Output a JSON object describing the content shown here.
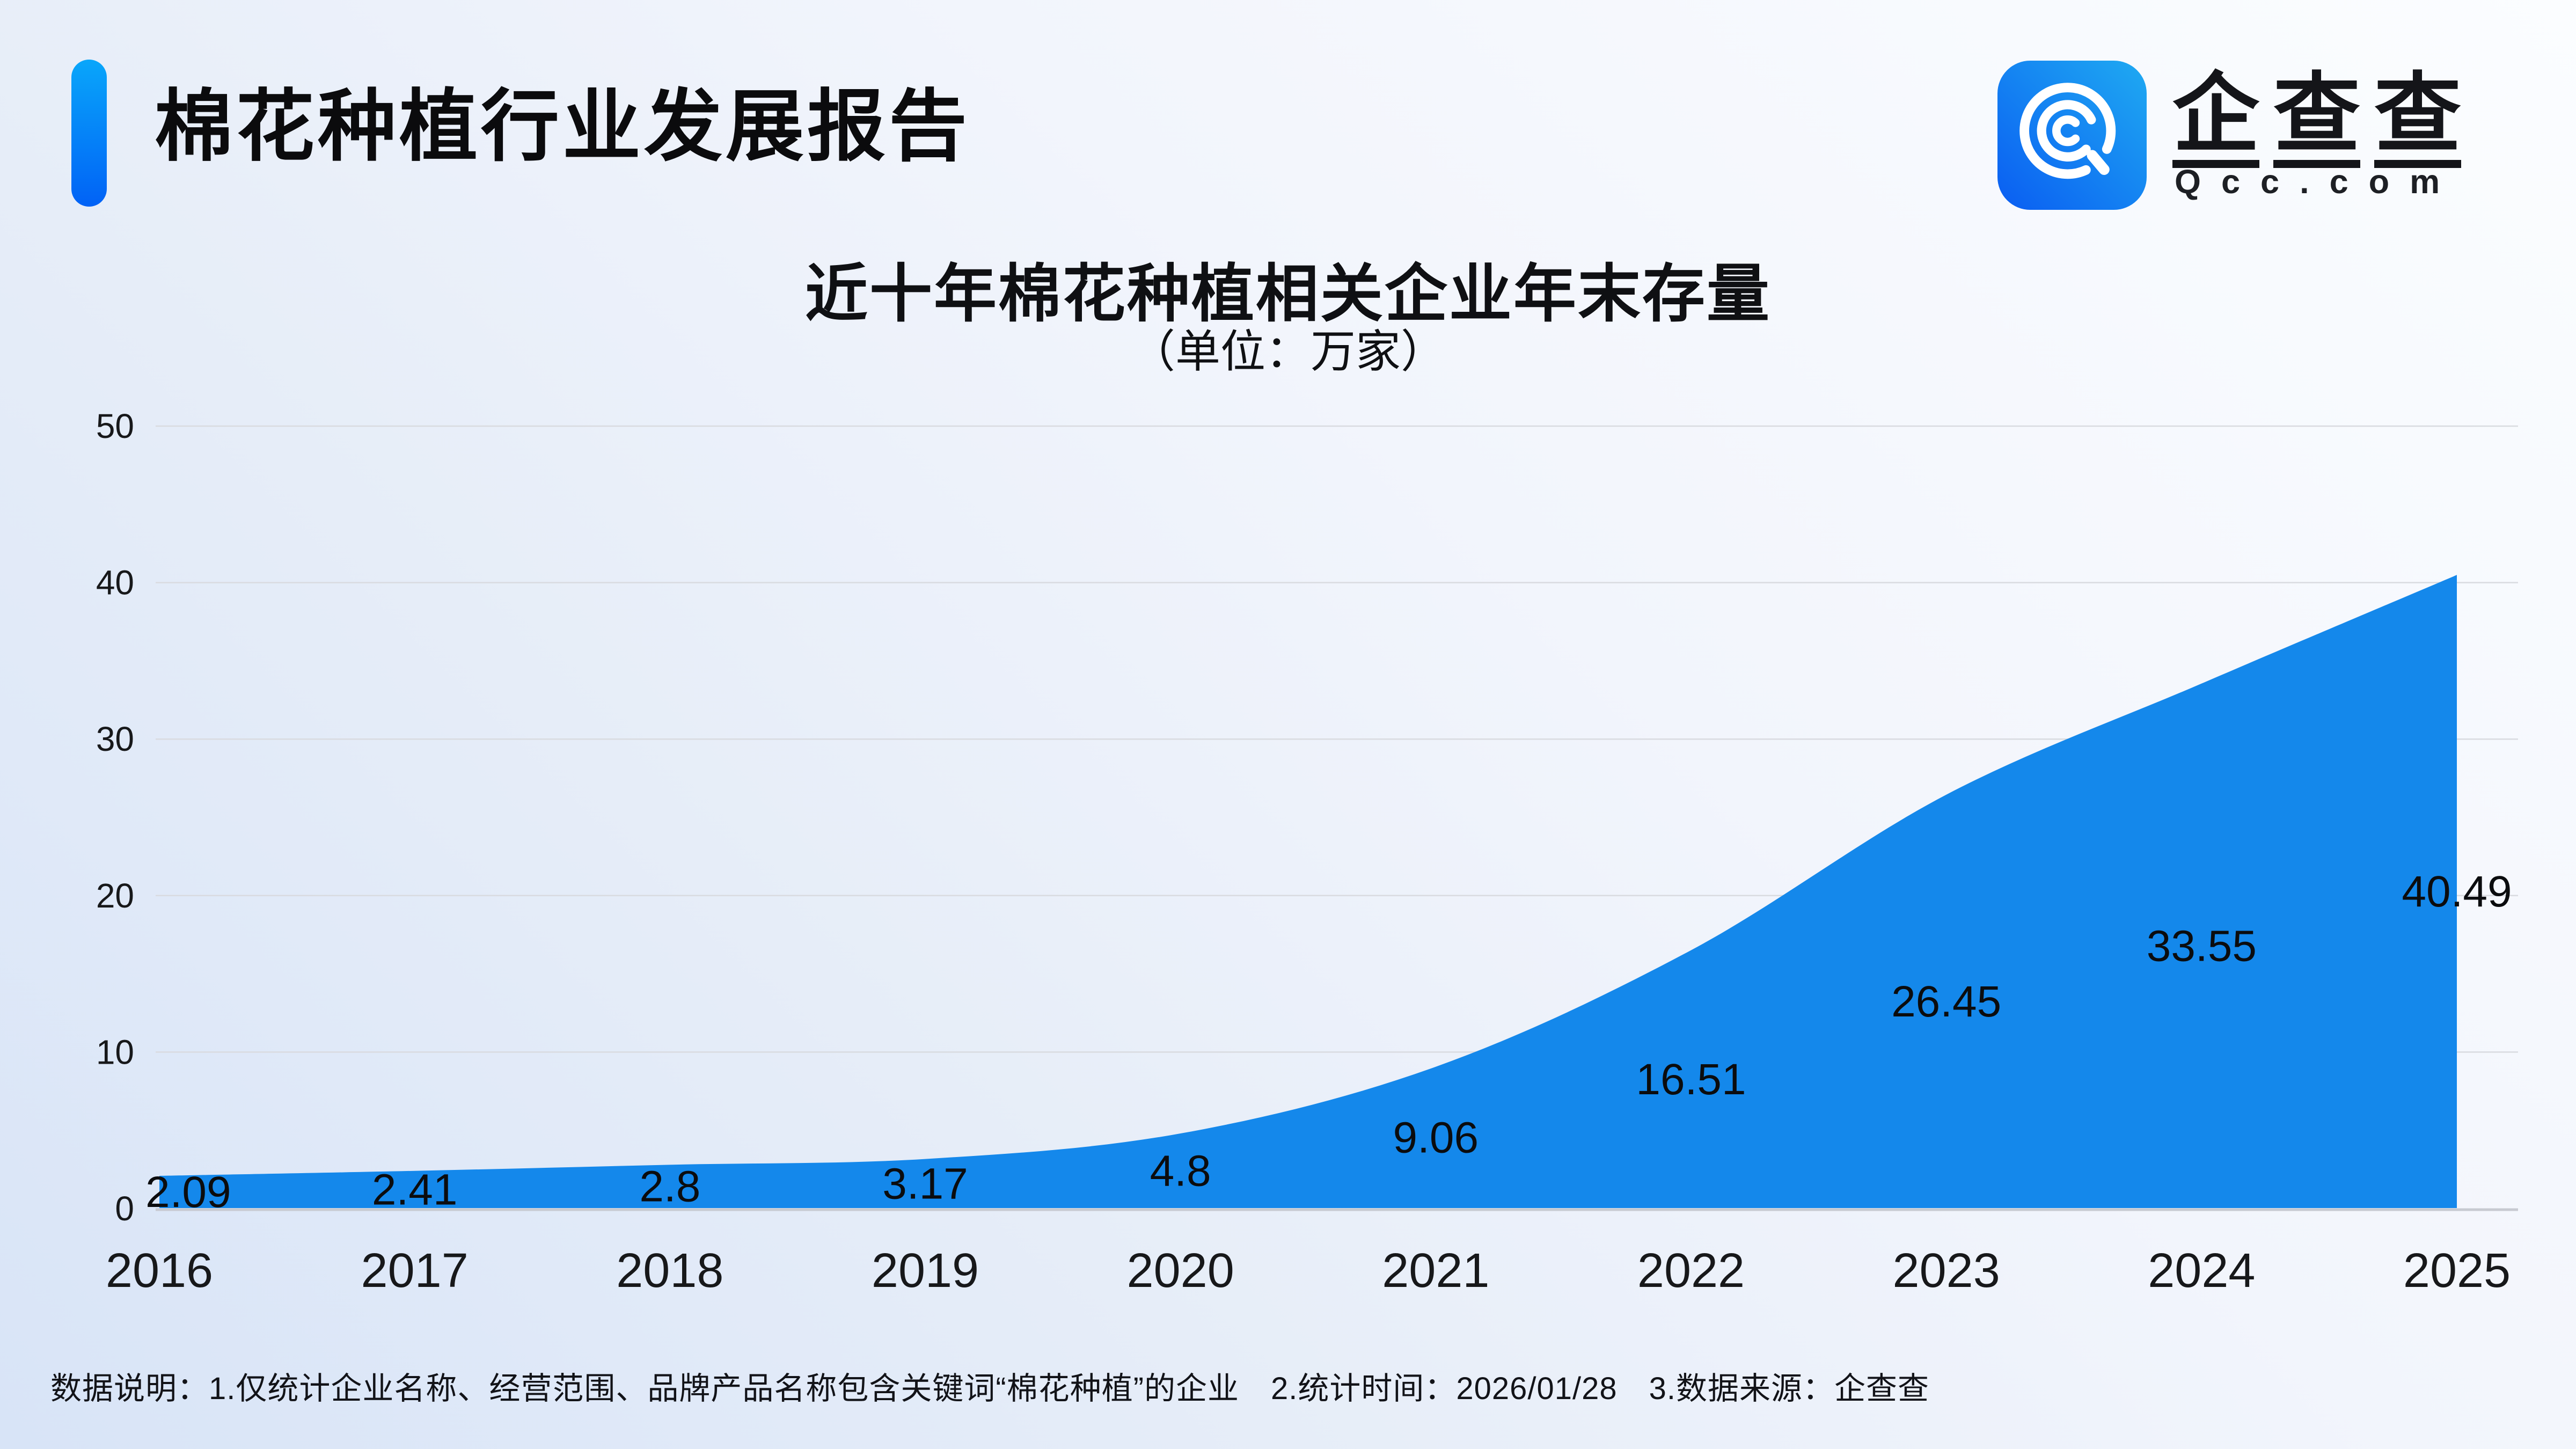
{
  "header": {
    "title": "棉花种植行业发展报告"
  },
  "logo": {
    "icon": "qcc-spiral-q-icon",
    "brand_chars": [
      "企",
      "查",
      "查"
    ],
    "domain": "Qcc.com",
    "icon_gradient_start": "#0A5DF2",
    "icon_gradient_end": "#1FAAF2"
  },
  "chart_data": {
    "type": "area",
    "title": "近十年棉花种植相关企业年末存量",
    "subtitle": "（单位：万家）",
    "unit": "万家",
    "categories": [
      "2016",
      "2017",
      "2018",
      "2019",
      "2020",
      "2021",
      "2022",
      "2023",
      "2024",
      "2025"
    ],
    "values": [
      2.09,
      2.41,
      2.8,
      3.17,
      4.8,
      9.06,
      16.51,
      26.45,
      33.55,
      40.49
    ],
    "ylim": [
      0,
      50
    ],
    "yticks": [
      0,
      10,
      20,
      30,
      40,
      50
    ],
    "grid": true,
    "legend": false,
    "smooth": true,
    "label_position": "inside-middle",
    "area_color": "#1488EB",
    "data_label_color": "#0b0c0e",
    "axis_label_color": "#17181a",
    "gridline_color": "#d9dbe0",
    "baseline_color": "#c7cad1"
  },
  "footer": {
    "note": "数据说明：1.仅统计企业名称、经营范围、品牌产品名称包含关键词“棉花种植”的企业　2.统计时间：2026/01/28　3.数据来源：企查查"
  },
  "colors": {
    "accent_bar_top": "#09A6FA",
    "accent_bar_bottom": "#0162F6",
    "background_dark_corner": "#D8E4F7",
    "background_light_corner": "#FBFDFF"
  }
}
